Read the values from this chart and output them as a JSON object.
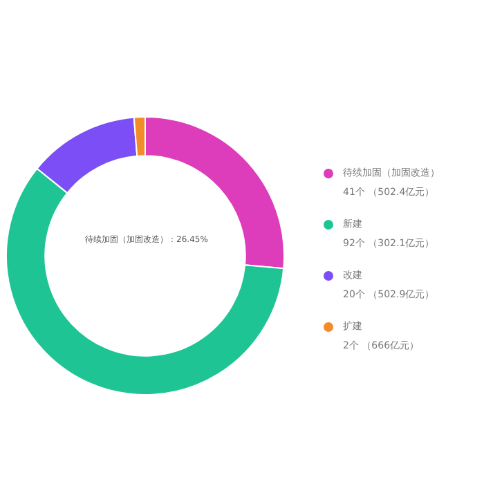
{
  "chart_data": {
    "type": "donut",
    "categories": [
      "待续加固（加固改造）",
      "新建",
      "改建",
      "扩建"
    ],
    "values": [
      41,
      92,
      20,
      2
    ],
    "value_labels": [
      "41个 （502.4亿元）",
      "92个 （302.1亿元）",
      "20个 （502.9亿元）",
      "2个 （666亿元）"
    ],
    "colors": [
      "#dd3dbb",
      "#1fc495",
      "#7b4ff5",
      "#f28c28"
    ],
    "annotations": [
      "待续加固（加固改造）：26.45%"
    ],
    "legend": "right"
  }
}
